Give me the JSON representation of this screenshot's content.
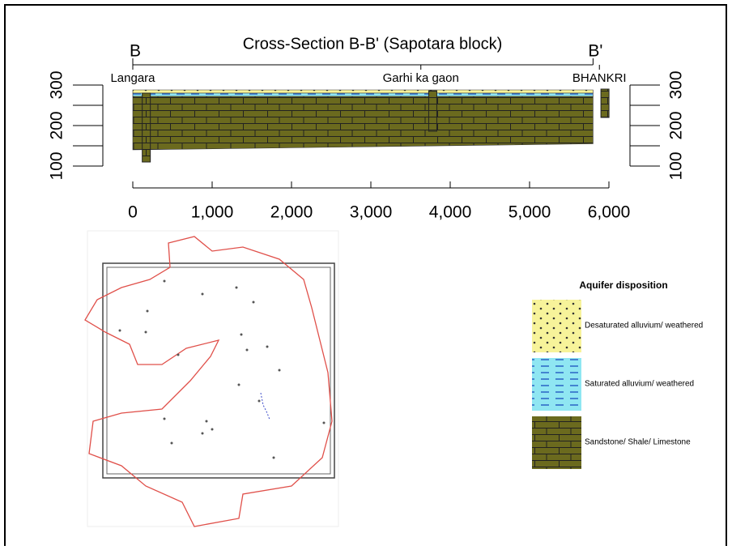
{
  "chart_data": {
    "type": "cross-section",
    "title": "Cross-Section B-B' (Sapotara block)",
    "xlim": [
      0,
      6000
    ],
    "xticks": [
      0,
      {
        "value": 1000,
        "label": "1,000"
      },
      {
        "value": 2000,
        "label": "2,000"
      },
      {
        "value": 3000,
        "label": "3,000"
      },
      {
        "value": 4000,
        "label": "4,000"
      },
      {
        "value": 5000,
        "label": "5,000"
      },
      {
        "value": 6000,
        "label": "6,000"
      }
    ],
    "ylim": [
      100,
      300
    ],
    "yticks": [
      100,
      200,
      300
    ],
    "yminorticks": [
      150,
      250
    ],
    "section_ends": [
      {
        "label": "B",
        "x": 0
      },
      {
        "label": "B'",
        "x": 5800
      }
    ],
    "locations": [
      {
        "label": "Langara",
        "x": 0
      },
      {
        "label": "Garhi ka gaon",
        "x": 3630
      },
      {
        "label": "BHANKRI",
        "x": 5880
      }
    ],
    "series": [
      {
        "name": "Desaturated alluvium/ weathered",
        "color": "#f7f39a",
        "x": [
          0,
          5800
        ],
        "top": [
          288,
          288
        ],
        "bottom": [
          280,
          280
        ]
      },
      {
        "name": "Saturated alluvium/ weathered",
        "color": "#8fe6f2",
        "x": [
          0,
          5800
        ],
        "top": [
          280,
          280
        ],
        "bottom": [
          272,
          272
        ]
      },
      {
        "name": "Sandstone/ Shale/ Limestone",
        "color": "#6b6a1e",
        "x": [
          0,
          5800
        ],
        "top": [
          272,
          272
        ],
        "bottom": [
          140,
          155
        ]
      }
    ],
    "wells": [
      {
        "x": 170,
        "top": 280,
        "bottom": 110
      },
      {
        "x": 3780,
        "top": 286,
        "bottom": 186
      },
      {
        "x": 5950,
        "top": 290,
        "bottom": 220
      }
    ],
    "legend_title": "Aquifer disposition"
  }
}
